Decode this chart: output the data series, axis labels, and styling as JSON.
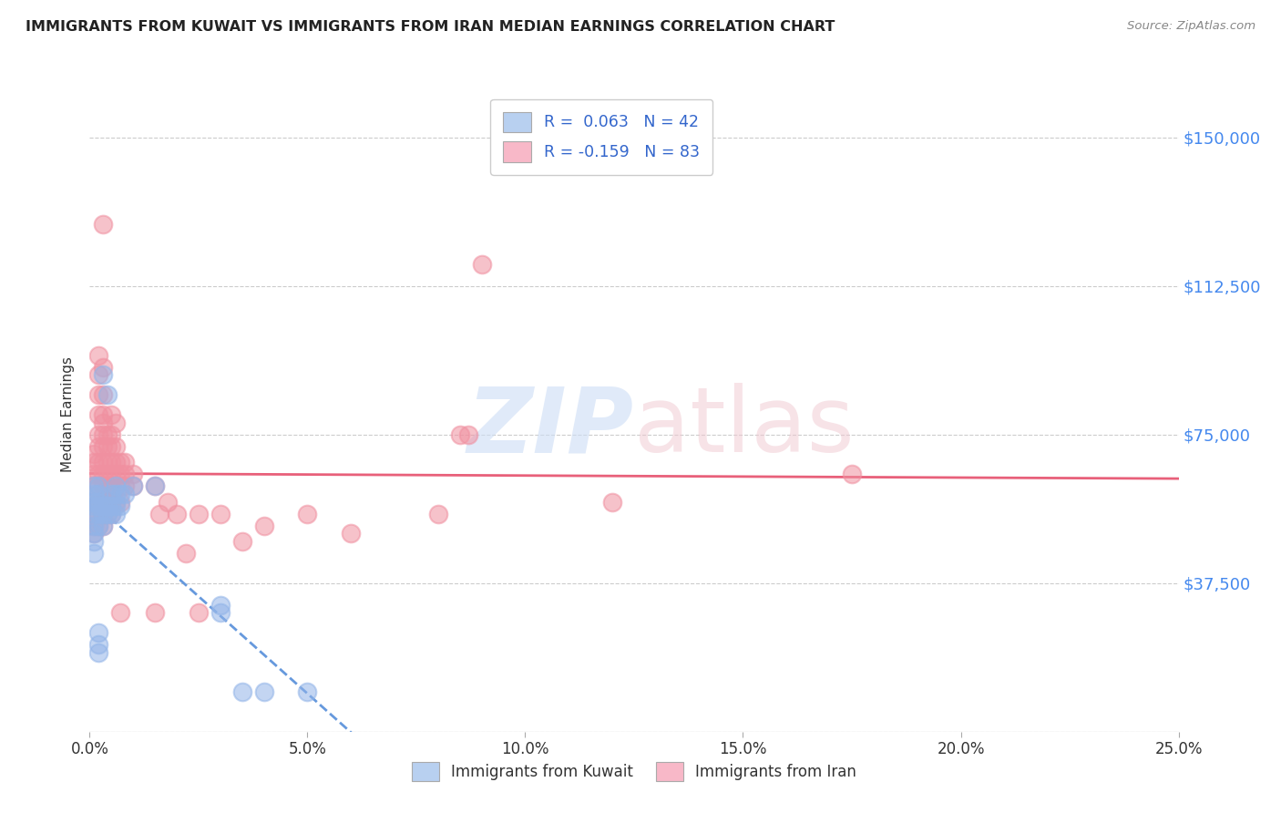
{
  "title": "IMMIGRANTS FROM KUWAIT VS IMMIGRANTS FROM IRAN MEDIAN EARNINGS CORRELATION CHART",
  "source": "Source: ZipAtlas.com",
  "ylabel": "Median Earnings",
  "yticks": [
    0,
    37500,
    75000,
    112500,
    150000
  ],
  "ytick_labels": [
    "",
    "$37,500",
    "$75,000",
    "$112,500",
    "$150,000"
  ],
  "xlim": [
    0.0,
    0.25
  ],
  "ylim": [
    0,
    160000
  ],
  "background_color": "#ffffff",
  "kuwait_color": "#92b4e8",
  "iran_color": "#f090a0",
  "kuwait_line_color": "#6699dd",
  "iran_line_color": "#e8607a",
  "legend_kuwait_color": "#b8d0f0",
  "legend_iran_color": "#f8b8c8",
  "kuwait_R": "R =  0.063",
  "kuwait_N": "N = 42",
  "iran_R": "R = -0.159",
  "iran_N": "N = 83",
  "kuwait_points": [
    [
      0.001,
      52000
    ],
    [
      0.001,
      55000
    ],
    [
      0.001,
      57000
    ],
    [
      0.001,
      58000
    ],
    [
      0.001,
      60000
    ],
    [
      0.001,
      62000
    ],
    [
      0.001,
      45000
    ],
    [
      0.001,
      48000
    ],
    [
      0.001,
      50000
    ],
    [
      0.002,
      52000
    ],
    [
      0.002,
      55000
    ],
    [
      0.002,
      57000
    ],
    [
      0.002,
      58000
    ],
    [
      0.002,
      60000
    ],
    [
      0.002,
      62000
    ],
    [
      0.002,
      20000
    ],
    [
      0.002,
      22000
    ],
    [
      0.002,
      25000
    ],
    [
      0.003,
      52000
    ],
    [
      0.003,
      55000
    ],
    [
      0.003,
      57000
    ],
    [
      0.003,
      90000
    ],
    [
      0.004,
      55000
    ],
    [
      0.004,
      57000
    ],
    [
      0.004,
      85000
    ],
    [
      0.005,
      55000
    ],
    [
      0.005,
      57000
    ],
    [
      0.005,
      60000
    ],
    [
      0.006,
      55000
    ],
    [
      0.006,
      57000
    ],
    [
      0.006,
      60000
    ],
    [
      0.006,
      62000
    ],
    [
      0.007,
      57000
    ],
    [
      0.007,
      60000
    ],
    [
      0.008,
      60000
    ],
    [
      0.01,
      62000
    ],
    [
      0.015,
      62000
    ],
    [
      0.03,
      30000
    ],
    [
      0.03,
      32000
    ],
    [
      0.035,
      10000
    ],
    [
      0.04,
      10000
    ],
    [
      0.05,
      10000
    ]
  ],
  "iran_points": [
    [
      0.001,
      50000
    ],
    [
      0.001,
      52000
    ],
    [
      0.001,
      55000
    ],
    [
      0.001,
      58000
    ],
    [
      0.001,
      62000
    ],
    [
      0.001,
      65000
    ],
    [
      0.001,
      68000
    ],
    [
      0.001,
      70000
    ],
    [
      0.002,
      52000
    ],
    [
      0.002,
      55000
    ],
    [
      0.002,
      58000
    ],
    [
      0.002,
      62000
    ],
    [
      0.002,
      65000
    ],
    [
      0.002,
      68000
    ],
    [
      0.002,
      72000
    ],
    [
      0.002,
      75000
    ],
    [
      0.002,
      80000
    ],
    [
      0.002,
      85000
    ],
    [
      0.002,
      90000
    ],
    [
      0.002,
      95000
    ],
    [
      0.003,
      52000
    ],
    [
      0.003,
      55000
    ],
    [
      0.003,
      58000
    ],
    [
      0.003,
      62000
    ],
    [
      0.003,
      65000
    ],
    [
      0.003,
      68000
    ],
    [
      0.003,
      72000
    ],
    [
      0.003,
      75000
    ],
    [
      0.003,
      78000
    ],
    [
      0.003,
      80000
    ],
    [
      0.003,
      85000
    ],
    [
      0.003,
      92000
    ],
    [
      0.004,
      55000
    ],
    [
      0.004,
      58000
    ],
    [
      0.004,
      62000
    ],
    [
      0.004,
      65000
    ],
    [
      0.004,
      68000
    ],
    [
      0.004,
      72000
    ],
    [
      0.004,
      75000
    ],
    [
      0.005,
      55000
    ],
    [
      0.005,
      58000
    ],
    [
      0.005,
      62000
    ],
    [
      0.005,
      65000
    ],
    [
      0.005,
      68000
    ],
    [
      0.005,
      72000
    ],
    [
      0.005,
      75000
    ],
    [
      0.005,
      80000
    ],
    [
      0.006,
      58000
    ],
    [
      0.006,
      62000
    ],
    [
      0.006,
      65000
    ],
    [
      0.006,
      68000
    ],
    [
      0.006,
      72000
    ],
    [
      0.006,
      78000
    ],
    [
      0.007,
      58000
    ],
    [
      0.007,
      62000
    ],
    [
      0.007,
      65000
    ],
    [
      0.007,
      68000
    ],
    [
      0.008,
      62000
    ],
    [
      0.008,
      65000
    ],
    [
      0.008,
      68000
    ],
    [
      0.01,
      62000
    ],
    [
      0.01,
      65000
    ],
    [
      0.015,
      62000
    ],
    [
      0.016,
      55000
    ],
    [
      0.018,
      58000
    ],
    [
      0.02,
      55000
    ],
    [
      0.022,
      45000
    ],
    [
      0.025,
      55000
    ],
    [
      0.03,
      55000
    ],
    [
      0.035,
      48000
    ],
    [
      0.04,
      52000
    ],
    [
      0.05,
      55000
    ],
    [
      0.06,
      50000
    ],
    [
      0.08,
      55000
    ],
    [
      0.085,
      75000
    ],
    [
      0.087,
      75000
    ],
    [
      0.09,
      118000
    ],
    [
      0.12,
      58000
    ],
    [
      0.175,
      65000
    ],
    [
      0.003,
      128000
    ],
    [
      0.007,
      30000
    ],
    [
      0.015,
      30000
    ],
    [
      0.025,
      30000
    ]
  ]
}
